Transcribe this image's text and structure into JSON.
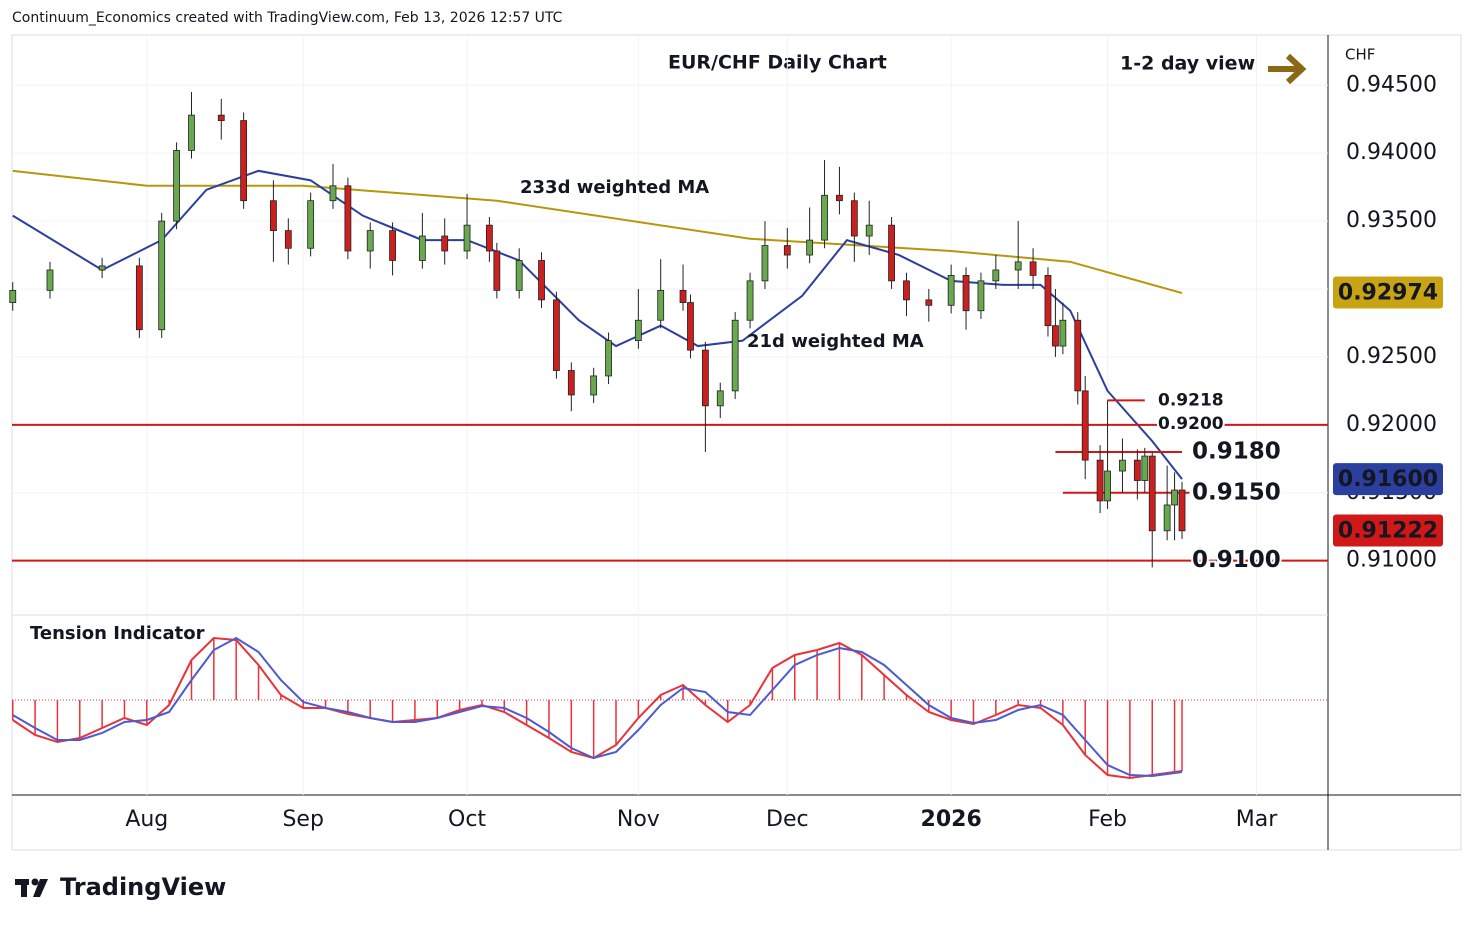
{
  "header": "Continuum_Economics created with TradingView.com, Feb 13, 2026 12:57 UTC",
  "footer_logo": "TradingView",
  "chart_data": [
    {
      "type": "candlestick",
      "title": "EUR/CHF Daily Chart",
      "subtitle": "1-2 day view",
      "currency": "CHF",
      "up_color": "#6aa84f",
      "down_color": "#cc2020",
      "grid": true,
      "xlim": [
        -18.1,
        158.6
      ],
      "ylim": [
        0.906,
        0.9487
      ],
      "xticks": [
        {
          "value": 0,
          "label": "Aug"
        },
        {
          "value": 21,
          "label": "Sep"
        },
        {
          "value": 43,
          "label": "Oct"
        },
        {
          "value": 66,
          "label": "Nov"
        },
        {
          "value": 86,
          "label": "Dec"
        },
        {
          "value": 108,
          "label": "2026",
          "bold": true
        },
        {
          "value": 129,
          "label": "Feb"
        },
        {
          "value": 149,
          "label": "Mar"
        }
      ],
      "yticks": [
        {
          "value": 0.945,
          "label": "0.94500"
        },
        {
          "value": 0.94,
          "label": "0.94000"
        },
        {
          "value": 0.935,
          "label": "0.93500"
        },
        {
          "value": 0.93,
          "label": "0.93000"
        },
        {
          "value": 0.925,
          "label": "0.92500"
        },
        {
          "value": 0.92,
          "label": "0.92000"
        },
        {
          "value": 0.915,
          "label": "0.91500"
        },
        {
          "value": 0.91,
          "label": "0.91000"
        }
      ],
      "x": [
        -18,
        -13,
        -6,
        -1,
        2,
        4,
        6,
        10,
        13,
        17,
        19,
        22,
        25,
        27,
        30,
        33,
        37,
        40,
        43,
        46,
        47,
        50,
        53,
        55,
        57,
        60,
        62,
        66,
        69,
        72,
        73,
        75,
        77,
        79,
        81,
        83,
        86,
        89,
        91,
        93,
        95,
        97,
        100,
        102,
        105,
        108,
        110,
        112,
        114,
        117,
        119,
        121,
        122,
        123,
        125,
        126,
        128,
        129,
        131,
        133,
        134,
        135,
        137,
        138,
        139
      ],
      "ohlc": [
        [
          0.929,
          0.9305,
          0.9284,
          0.9299
        ],
        [
          0.9299,
          0.932,
          0.9293,
          0.9314
        ],
        [
          0.9314,
          0.9323,
          0.9308,
          0.9317
        ],
        [
          0.9317,
          0.9323,
          0.9264,
          0.927
        ],
        [
          0.927,
          0.9356,
          0.9264,
          0.935
        ],
        [
          0.935,
          0.9408,
          0.9344,
          0.9402
        ],
        [
          0.9402,
          0.9445,
          0.9396,
          0.9428
        ],
        [
          0.9428,
          0.944,
          0.941,
          0.9424
        ],
        [
          0.9424,
          0.943,
          0.9359,
          0.9365
        ],
        [
          0.9365,
          0.938,
          0.932,
          0.9343
        ],
        [
          0.9343,
          0.9352,
          0.9318,
          0.933
        ],
        [
          0.933,
          0.9371,
          0.9324,
          0.9365
        ],
        [
          0.9365,
          0.9392,
          0.9359,
          0.9376
        ],
        [
          0.9376,
          0.9382,
          0.9322,
          0.9328
        ],
        [
          0.9328,
          0.9349,
          0.9315,
          0.9343
        ],
        [
          0.9343,
          0.9349,
          0.931,
          0.9321
        ],
        [
          0.9321,
          0.9356,
          0.9315,
          0.9339
        ],
        [
          0.9339,
          0.9352,
          0.9318,
          0.9328
        ],
        [
          0.9328,
          0.937,
          0.9322,
          0.9347
        ],
        [
          0.9347,
          0.9353,
          0.932,
          0.9328
        ],
        [
          0.9328,
          0.9334,
          0.9293,
          0.9299
        ],
        [
          0.9299,
          0.933,
          0.9293,
          0.9321
        ],
        [
          0.9321,
          0.9327,
          0.9286,
          0.9292
        ],
        [
          0.9292,
          0.9298,
          0.9234,
          0.924
        ],
        [
          0.924,
          0.9246,
          0.921,
          0.9222
        ],
        [
          0.9222,
          0.9242,
          0.9216,
          0.9236
        ],
        [
          0.9236,
          0.9268,
          0.923,
          0.9262
        ],
        [
          0.9262,
          0.93,
          0.9256,
          0.9277
        ],
        [
          0.9277,
          0.9322,
          0.9271,
          0.9299
        ],
        [
          0.9299,
          0.9318,
          0.9284,
          0.929
        ],
        [
          0.929,
          0.9296,
          0.9249,
          0.9255
        ],
        [
          0.9255,
          0.9261,
          0.918,
          0.9214
        ],
        [
          0.9214,
          0.9231,
          0.9205,
          0.9225
        ],
        [
          0.9225,
          0.9283,
          0.9219,
          0.9277
        ],
        [
          0.9277,
          0.9312,
          0.9271,
          0.9306
        ],
        [
          0.9306,
          0.935,
          0.93,
          0.9332
        ],
        [
          0.9332,
          0.9345,
          0.9315,
          0.9325
        ],
        [
          0.9325,
          0.936,
          0.9319,
          0.9336
        ],
        [
          0.9336,
          0.9395,
          0.933,
          0.9369
        ],
        [
          0.9369,
          0.939,
          0.9355,
          0.9365
        ],
        [
          0.9365,
          0.9371,
          0.932,
          0.9339
        ],
        [
          0.9339,
          0.9365,
          0.9325,
          0.9347
        ],
        [
          0.9347,
          0.9353,
          0.93,
          0.9306
        ],
        [
          0.9306,
          0.9312,
          0.928,
          0.9292
        ],
        [
          0.9292,
          0.93,
          0.9276,
          0.9288
        ],
        [
          0.9288,
          0.9318,
          0.9282,
          0.931
        ],
        [
          0.931,
          0.9316,
          0.927,
          0.9284
        ],
        [
          0.9284,
          0.9312,
          0.9278,
          0.9306
        ],
        [
          0.9306,
          0.9325,
          0.93,
          0.9314
        ],
        [
          0.9314,
          0.935,
          0.93,
          0.932
        ],
        [
          0.932,
          0.933,
          0.93,
          0.931
        ],
        [
          0.931,
          0.9316,
          0.9265,
          0.9273
        ],
        [
          0.9273,
          0.93,
          0.925,
          0.9258
        ],
        [
          0.9258,
          0.929,
          0.9252,
          0.9277
        ],
        [
          0.9277,
          0.9283,
          0.9215,
          0.9225
        ],
        [
          0.9225,
          0.9236,
          0.916,
          0.9174
        ],
        [
          0.9174,
          0.9185,
          0.9135,
          0.9144
        ],
        [
          0.9144,
          0.9218,
          0.9138,
          0.9166
        ],
        [
          0.9166,
          0.919,
          0.915,
          0.9174
        ],
        [
          0.9174,
          0.9182,
          0.9145,
          0.9159
        ],
        [
          0.9159,
          0.9183,
          0.915,
          0.9177
        ],
        [
          0.9177,
          0.918,
          0.9095,
          0.9122
        ],
        [
          0.9122,
          0.917,
          0.9115,
          0.9141
        ],
        [
          0.9141,
          0.9165,
          0.9115,
          0.9152
        ],
        [
          0.9152,
          0.9158,
          0.9116,
          0.9122
        ]
      ],
      "overlays": [
        {
          "name": "233d weighted MA",
          "color": "#b8960a",
          "x": [
            -18,
            0,
            21,
            47,
            81,
            108,
            124,
            139
          ],
          "values": [
            0.9387,
            0.9376,
            0.9376,
            0.9365,
            0.9337,
            0.9328,
            0.932,
            0.9297
          ]
        },
        {
          "name": "21d weighted MA",
          "color": "#2a3f9e",
          "x": [
            -18,
            -6,
            2,
            8,
            15,
            22,
            29,
            37,
            43,
            50,
            58,
            63,
            69,
            74,
            80,
            88,
            94,
            101,
            108,
            115,
            120,
            124,
            129,
            135,
            139
          ],
          "values": [
            0.9354,
            0.9314,
            0.9336,
            0.9373,
            0.9387,
            0.938,
            0.9354,
            0.9336,
            0.9336,
            0.9321,
            0.9277,
            0.9258,
            0.9273,
            0.9258,
            0.9262,
            0.9295,
            0.9336,
            0.9325,
            0.9306,
            0.9303,
            0.9303,
            0.9284,
            0.9225,
            0.9188,
            0.916
          ]
        }
      ],
      "levels": [
        {
          "value": 0.92,
          "label": "0.9200"
        },
        {
          "value": 0.91,
          "label": "0.9100",
          "emphasis": true
        },
        {
          "value": 0.9218,
          "label": "0.9218",
          "xrange": [
            129,
            134
          ]
        },
        {
          "value": 0.918,
          "label": "0.9180",
          "xrange": [
            122,
            139
          ],
          "emphasis": true
        },
        {
          "value": 0.915,
          "label": "0.9150",
          "xrange": [
            123,
            140
          ],
          "emphasis": true
        }
      ],
      "price_tags": [
        {
          "value": 0.92974,
          "color": "#c8a415"
        },
        {
          "value": 0.916,
          "label": "0.91600",
          "color": "#2a3f9e"
        },
        {
          "value": 0.91222,
          "color": "#d01818"
        }
      ]
    },
    {
      "type": "line",
      "title": "Tension Indicator",
      "ylim": [
        -95,
        82
      ],
      "xlim": [
        -18.1,
        158.6
      ],
      "x": [
        -18,
        -15,
        -12,
        -9,
        -6,
        -3,
        0,
        3,
        6,
        9,
        12,
        15,
        18,
        21,
        24,
        27,
        30,
        33,
        36,
        39,
        42,
        45,
        48,
        51,
        54,
        57,
        60,
        63,
        66,
        69,
        72,
        75,
        78,
        81,
        84,
        87,
        90,
        93,
        96,
        99,
        102,
        105,
        108,
        111,
        114,
        117,
        120,
        123,
        126,
        129,
        132,
        135,
        138,
        139
      ],
      "series": [
        {
          "color": "#e8333a",
          "histogram": true,
          "values": [
            -20,
            -35,
            -42,
            -38,
            -28,
            -18,
            -25,
            -5,
            40,
            62,
            60,
            35,
            5,
            -8,
            -8,
            -14,
            -18,
            -22,
            -20,
            -18,
            -10,
            -5,
            -12,
            -25,
            -38,
            -52,
            -58,
            -45,
            -18,
            5,
            15,
            -5,
            -22,
            -5,
            32,
            45,
            50,
            57,
            45,
            25,
            5,
            -12,
            -20,
            -24,
            -15,
            -5,
            -8,
            -25,
            -55,
            -75,
            -78,
            -75,
            -72,
            -71
          ]
        },
        {
          "color": "#4a5bd4",
          "values": [
            -15,
            -28,
            -40,
            -40,
            -33,
            -22,
            -20,
            -12,
            20,
            50,
            62,
            48,
            20,
            -2,
            -8,
            -12,
            -18,
            -22,
            -22,
            -18,
            -12,
            -6,
            -8,
            -18,
            -32,
            -48,
            -58,
            -52,
            -30,
            -5,
            12,
            8,
            -12,
            -15,
            10,
            35,
            45,
            52,
            48,
            35,
            15,
            -5,
            -18,
            -23,
            -20,
            -10,
            -5,
            -15,
            -40,
            -65,
            -75,
            -76,
            -73,
            -72
          ]
        }
      ]
    }
  ]
}
